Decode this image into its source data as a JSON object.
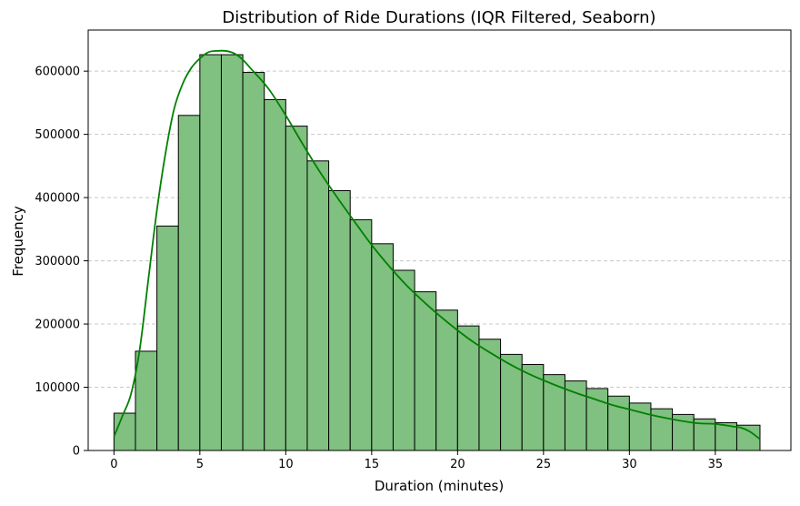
{
  "chart_data": {
    "type": "bar",
    "title": "Distribution of Ride Durations (IQR Filtered, Seaborn)",
    "xlabel": "Duration (minutes)",
    "ylabel": "Frequency",
    "xlim": [
      -1.5,
      39.4
    ],
    "ylim": [
      0,
      665000
    ],
    "x_ticks": [
      0,
      5,
      10,
      15,
      20,
      25,
      30,
      35
    ],
    "y_ticks": [
      0,
      100000,
      200000,
      300000,
      400000,
      500000,
      600000
    ],
    "grid": "y-dashed",
    "bar_color": "#80c080",
    "bar_edge_color": "#000000",
    "kde_color": "#008000",
    "bin_edges": [
      0,
      1.25,
      2.5,
      3.75,
      5,
      6.25,
      7.5,
      8.75,
      10,
      11.25,
      12.5,
      13.75,
      15,
      16.25,
      17.5,
      18.75,
      20,
      21.25,
      22.5,
      23.75,
      25,
      26.25,
      27.5,
      28.75,
      30,
      31.25,
      32.5,
      33.75,
      35,
      36.25,
      37.6
    ],
    "values": [
      59000,
      157000,
      355000,
      530000,
      626000,
      626000,
      598000,
      555000,
      513000,
      458000,
      411000,
      365000,
      327000,
      285000,
      251000,
      222000,
      197000,
      176000,
      152000,
      136000,
      120000,
      110000,
      98000,
      86000,
      75000,
      66000,
      57000,
      50000,
      44000,
      40000
    ],
    "kde": {
      "x": [
        0,
        0.5,
        1,
        1.5,
        2,
        2.5,
        3,
        3.5,
        4,
        4.5,
        5,
        5.5,
        6,
        6.5,
        7,
        7.5,
        8,
        9,
        10,
        11,
        12,
        13,
        14,
        15,
        16,
        17,
        18,
        19,
        20,
        21,
        22,
        23,
        24,
        25,
        26,
        27,
        28,
        29,
        30,
        31,
        32,
        33,
        34,
        35,
        36,
        36.5,
        37,
        37.6
      ],
      "y": [
        22000,
        55000,
        90000,
        160000,
        270000,
        380000,
        470000,
        540000,
        580000,
        605000,
        620000,
        630000,
        632000,
        632000,
        628000,
        618000,
        603000,
        572000,
        530000,
        484000,
        440000,
        400000,
        362000,
        325000,
        292000,
        262000,
        236000,
        212000,
        190000,
        170000,
        153000,
        137000,
        123000,
        111000,
        100000,
        90000,
        81000,
        72000,
        65000,
        58000,
        52000,
        47000,
        43000,
        42000,
        38000,
        36000,
        30000,
        18000
      ]
    }
  }
}
